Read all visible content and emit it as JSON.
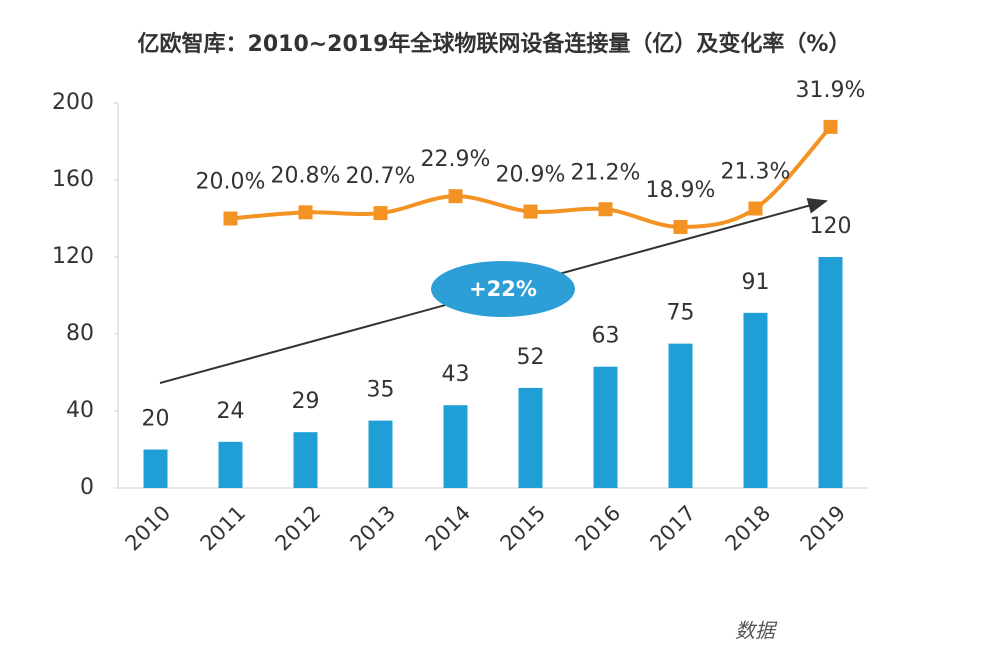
{
  "chart_data": {
    "type": "bar",
    "title": "亿欧智库：2010~2019年全球物联网设备连接量（亿）及变化率（%）",
    "categories": [
      "2010",
      "2011",
      "2012",
      "2013",
      "2014",
      "2015",
      "2016",
      "2017",
      "2018",
      "2019"
    ],
    "series": [
      {
        "name": "连接量",
        "type": "bar",
        "color": "#1f9fd5",
        "values": [
          20,
          24,
          29,
          35,
          43,
          52,
          63,
          75,
          91,
          120
        ]
      },
      {
        "name": "变化率",
        "type": "line",
        "axis": "y2",
        "color": "#f39323",
        "values": [
          null,
          20.0,
          20.8,
          20.7,
          22.9,
          20.9,
          21.2,
          18.9,
          21.3,
          31.9
        ],
        "value_labels": [
          null,
          "20.0%",
          "20.8%",
          "20.7%",
          "22.9%",
          "20.9%",
          "21.2%",
          "18.9%",
          "21.3%",
          "31.9%"
        ]
      }
    ],
    "ylim": [
      0,
      200
    ],
    "yticks": [
      0,
      40,
      80,
      120,
      160,
      200
    ],
    "y2lim": [
      -15,
      35
    ],
    "annotation": "+22%",
    "source": "数据"
  }
}
